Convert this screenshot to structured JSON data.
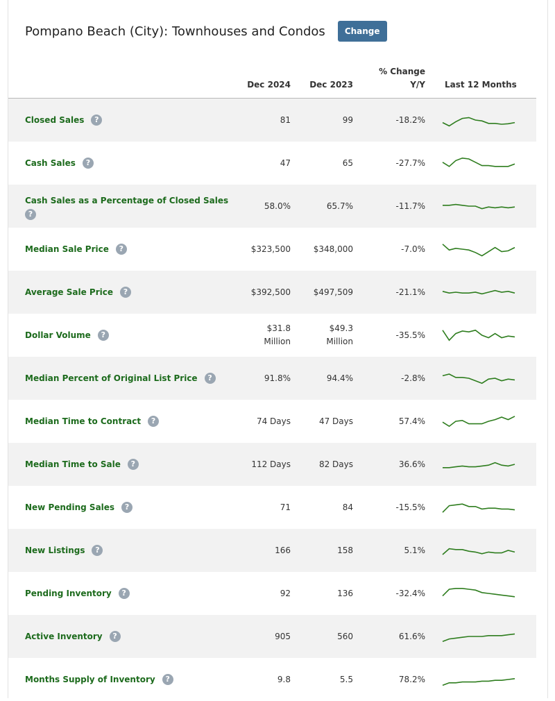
{
  "header": {
    "title": "Pompano Beach (City): Townhouses and Condos",
    "change_label": "Change"
  },
  "columns": {
    "current": "Dec 2024",
    "prior": "Dec 2023",
    "change_line1": "% Change",
    "change_line2": "Y/Y",
    "trend": "Last 12 Months"
  },
  "help_glyph": "?",
  "rows": [
    {
      "label": "Closed Sales",
      "current": "81",
      "prior": "99",
      "change": "-18.2%",
      "trend": [
        0.35,
        0.15,
        0.4,
        0.6,
        0.65,
        0.5,
        0.45,
        0.3,
        0.3,
        0.25,
        0.28,
        0.35
      ]
    },
    {
      "label": "Cash Sales",
      "current": "47",
      "prior": "65",
      "change": "-27.7%",
      "trend": [
        0.55,
        0.3,
        0.65,
        0.8,
        0.75,
        0.55,
        0.35,
        0.35,
        0.3,
        0.3,
        0.3,
        0.45
      ]
    },
    {
      "label": "Cash Sales as a Percentage of Closed Sales",
      "current": "58.0%",
      "prior": "65.7%",
      "change": "-11.7%",
      "trend": [
        0.55,
        0.55,
        0.6,
        0.55,
        0.5,
        0.5,
        0.35,
        0.45,
        0.4,
        0.45,
        0.4,
        0.45
      ]
    },
    {
      "label": "Median Sale Price",
      "current": "$323,500",
      "prior": "$348,000",
      "change": "-7.0%",
      "trend": [
        0.8,
        0.45,
        0.55,
        0.5,
        0.45,
        0.3,
        0.1,
        0.35,
        0.6,
        0.35,
        0.4,
        0.6
      ]
    },
    {
      "label": "Average Sale Price",
      "current": "$392,500",
      "prior": "$497,509",
      "change": "-21.1%",
      "trend": [
        0.55,
        0.45,
        0.5,
        0.45,
        0.45,
        0.5,
        0.4,
        0.5,
        0.6,
        0.5,
        0.55,
        0.45
      ]
    },
    {
      "label": "Dollar Volume",
      "current": "$31.8",
      "current_unit": "Million",
      "prior": "$49.3",
      "prior_unit": "Million",
      "change": "-35.5%",
      "trend": [
        0.8,
        0.2,
        0.6,
        0.75,
        0.7,
        0.8,
        0.5,
        0.35,
        0.6,
        0.35,
        0.45,
        0.4
      ]
    },
    {
      "label": "Median Percent of Original List Price",
      "current": "91.8%",
      "prior": "94.4%",
      "change": "-2.8%",
      "trend": [
        0.65,
        0.75,
        0.55,
        0.55,
        0.5,
        0.35,
        0.2,
        0.45,
        0.5,
        0.35,
        0.45,
        0.4
      ]
    },
    {
      "label": "Median Time to Contract",
      "current": "74 Days",
      "prior": "47 Days",
      "change": "57.4%",
      "trend": [
        0.45,
        0.2,
        0.5,
        0.55,
        0.35,
        0.35,
        0.35,
        0.5,
        0.6,
        0.75,
        0.6,
        0.8
      ]
    },
    {
      "label": "Median Time to Sale",
      "current": "112 Days",
      "prior": "82 Days",
      "change": "36.6%",
      "trend": [
        0.3,
        0.3,
        0.35,
        0.4,
        0.35,
        0.35,
        0.4,
        0.45,
        0.6,
        0.45,
        0.4,
        0.5
      ]
    },
    {
      "label": "New Pending Sales",
      "current": "71",
      "prior": "84",
      "change": "-15.5%",
      "trend": [
        0.2,
        0.6,
        0.65,
        0.7,
        0.55,
        0.55,
        0.4,
        0.45,
        0.45,
        0.4,
        0.4,
        0.35
      ]
    },
    {
      "label": "New Listings",
      "current": "166",
      "prior": "158",
      "change": "5.1%",
      "trend": [
        0.25,
        0.6,
        0.55,
        0.55,
        0.45,
        0.4,
        0.3,
        0.4,
        0.35,
        0.35,
        0.5,
        0.4
      ]
    },
    {
      "label": "Pending Inventory",
      "current": "92",
      "prior": "136",
      "change": "-32.4%",
      "trend": [
        0.35,
        0.75,
        0.8,
        0.8,
        0.75,
        0.7,
        0.55,
        0.5,
        0.45,
        0.4,
        0.35,
        0.3
      ]
    },
    {
      "label": "Active Inventory",
      "current": "905",
      "prior": "560",
      "change": "61.6%",
      "trend": [
        0.2,
        0.35,
        0.4,
        0.45,
        0.5,
        0.5,
        0.5,
        0.55,
        0.55,
        0.55,
        0.6,
        0.65
      ]
    },
    {
      "label": "Months Supply of Inventory",
      "current": "9.8",
      "prior": "5.5",
      "change": "78.2%",
      "trend": [
        0.15,
        0.3,
        0.3,
        0.35,
        0.35,
        0.35,
        0.4,
        0.4,
        0.45,
        0.45,
        0.5,
        0.55
      ]
    }
  ]
}
